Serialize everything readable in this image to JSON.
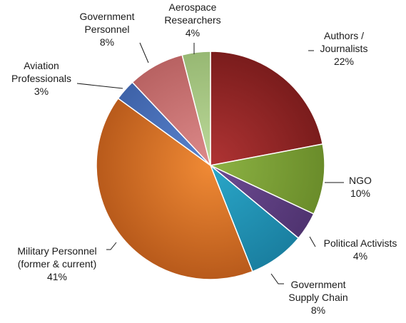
{
  "chart_data": {
    "type": "pie",
    "start_angle_deg": 0,
    "direction": "clockwise",
    "slices": [
      {
        "label": [
          "Authors /",
          "Journalists"
        ],
        "value": 22,
        "pct_text": "22%",
        "color": "#b03434",
        "color_dark": "#7a1c1c"
      },
      {
        "label": [
          "NGO"
        ],
        "value": 10,
        "pct_text": "10%",
        "color": "#8db344",
        "color_dark": "#6a8c2a"
      },
      {
        "label": [
          "Political Activists"
        ],
        "value": 4,
        "pct_text": "4%",
        "color": "#6e4c93",
        "color_dark": "#4f3370"
      },
      {
        "label": [
          "Government",
          "Supply Chain"
        ],
        "value": 8,
        "pct_text": "8%",
        "color": "#2aa7c9",
        "color_dark": "#1a7fa0"
      },
      {
        "label": [
          "Military Personnel",
          "(former & current)"
        ],
        "value": 41,
        "pct_text": "41%",
        "color": "#f08a35",
        "color_dark": "#b85a1b"
      },
      {
        "label": [
          "Aviation",
          "Professionals"
        ],
        "value": 3,
        "pct_text": "3%",
        "color": "#5a84cf",
        "color_dark": "#3e62a8"
      },
      {
        "label": [
          "Government",
          "Personnel"
        ],
        "value": 8,
        "pct_text": "8%",
        "color": "#dd8a8a",
        "color_dark": "#b86262"
      },
      {
        "label": [
          "Aerospace",
          "Researchers"
        ],
        "value": 4,
        "pct_text": "4%",
        "color": "#bcd99a",
        "color_dark": "#97b873"
      }
    ]
  }
}
